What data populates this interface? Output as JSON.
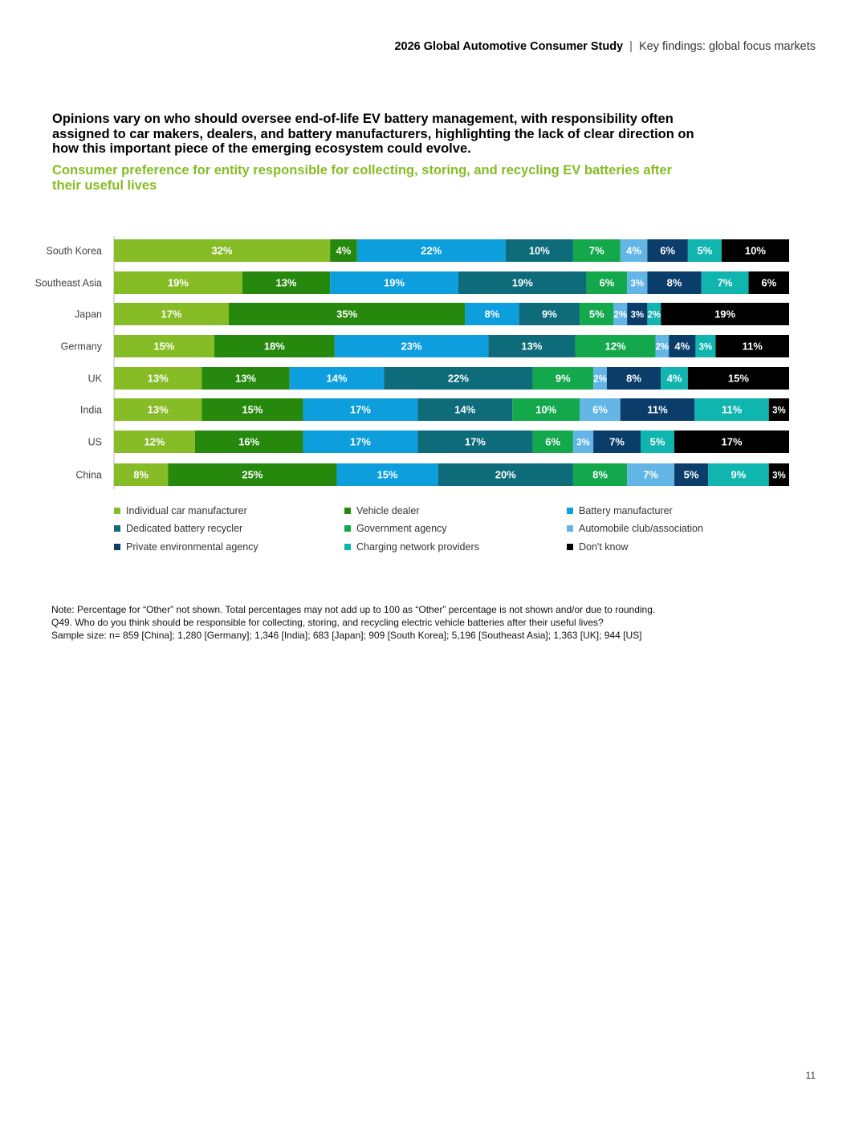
{
  "header": {
    "report_title": "2026 Global Automotive Consumer Study",
    "separator": "|",
    "section": "Key findings: global focus markets"
  },
  "headline": "Opinions vary on who should oversee end-of-life EV battery management, with responsibility often assigned to car makers, dealers, and battery manufacturers, highlighting the lack of clear direction on how this important piece of the emerging ecosystem could evolve.",
  "chart_data": {
    "type": "bar",
    "orientation": "horizontal",
    "stacked": true,
    "title": "Consumer preference for entity responsible for collecting, storing, and recycling EV batteries after their useful lives",
    "unit": "%",
    "legend_position": "bottom",
    "categories": [
      "South Korea",
      "Southeast Asia",
      "Japan",
      "Germany",
      "UK",
      "India",
      "US",
      "China"
    ],
    "series": [
      {
        "name": "Individual car manufacturer",
        "color": "#86bc25",
        "text_color": "#ffffff",
        "values": [
          32,
          19,
          17,
          15,
          13,
          13,
          12,
          8
        ]
      },
      {
        "name": "Vehicle dealer",
        "color": "#26890d",
        "text_color": "#ffffff",
        "values": [
          4,
          13,
          35,
          18,
          13,
          15,
          16,
          25
        ]
      },
      {
        "name": "Battery manufacturer",
        "color": "#0d9ede",
        "text_color": "#ffffff",
        "values": [
          22,
          19,
          8,
          23,
          14,
          17,
          17,
          15
        ]
      },
      {
        "name": "Dedicated battery recycler",
        "color": "#0d6b7a",
        "text_color": "#ffffff",
        "values": [
          10,
          19,
          9,
          13,
          22,
          14,
          17,
          20
        ]
      },
      {
        "name": "Government agency",
        "color": "#12a84b",
        "text_color": "#ffffff",
        "values": [
          7,
          6,
          5,
          12,
          9,
          10,
          6,
          8
        ]
      },
      {
        "name": "Automobile club/association",
        "color": "#62b5e5",
        "text_color": "#ffffff",
        "values": [
          4,
          3,
          2,
          2,
          2,
          6,
          3,
          7
        ]
      },
      {
        "name": "Private environmental agency",
        "color": "#0b3d6b",
        "text_color": "#ffffff",
        "values": [
          6,
          8,
          3,
          4,
          8,
          11,
          7,
          5
        ]
      },
      {
        "name": "Charging network providers",
        "color": "#0fb5ae",
        "text_color": "#ffffff",
        "values": [
          5,
          7,
          2,
          3,
          4,
          11,
          5,
          9
        ]
      },
      {
        "name": "Don't know",
        "color": "#000000",
        "text_color": "#ffffff",
        "values": [
          10,
          6,
          19,
          11,
          15,
          3,
          17,
          3
        ]
      }
    ]
  },
  "notes": [
    "Note: Percentage for “Other” not shown. Total percentages may not add up to 100 as “Other” percentage is not shown and/or due to rounding.",
    "Q49. Who do you think should be responsible for collecting, storing, and recycling electric vehicle batteries after their useful lives?",
    "Sample size: n= 859 [China]; 1,280 [Germany]; 1,346 [India]; 683 [Japan]; 909 [South Korea]; 5,196 [Southeast Asia]; 1,363 [UK]; 944 [US]"
  ],
  "page_number": "11"
}
